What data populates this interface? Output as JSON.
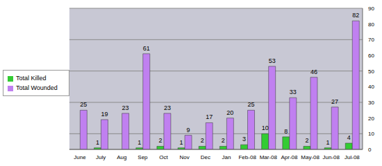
{
  "chart_data": {
    "type": "bar",
    "categories": [
      "June",
      "July",
      "Aug",
      "Sep",
      "Oct",
      "Nov",
      "Dec",
      "Jan",
      "Feb-08",
      "Mar-08",
      "Apr-08",
      "May-08",
      "Jun-08",
      "Jul-08"
    ],
    "series": [
      {
        "name": "Total Killed",
        "color": "#33cc33",
        "values": [
          0,
          1,
          0,
          1,
          2,
          1,
          2,
          2,
          3,
          10,
          8,
          2,
          1,
          4
        ]
      },
      {
        "name": "Total Wounded",
        "color": "#c080f0",
        "values": [
          25,
          19,
          23,
          61,
          23,
          9,
          17,
          20,
          25,
          53,
          33,
          46,
          27,
          82
        ]
      }
    ],
    "ylim": [
      0,
      90
    ],
    "yticks": [
      0,
      10,
      20,
      30,
      40,
      50,
      60,
      70,
      80,
      90
    ],
    "grid": true,
    "legend": "left",
    "data_labels": true
  }
}
